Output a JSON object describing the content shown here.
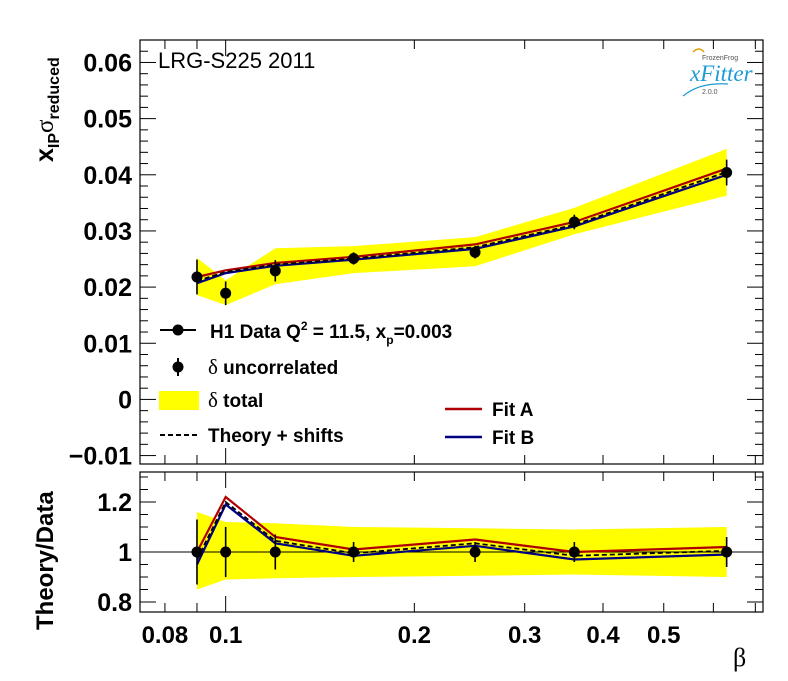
{
  "chart_data": [
    {
      "panel": "main",
      "type": "line",
      "title": "LRG-S225 2011",
      "xlabel": "β",
      "ylabel": {
        "main": "x",
        "sub1": "IP",
        "sym": "σ",
        "sub2": "reduced"
      },
      "xscale": "log",
      "xlim": [
        0.073,
        0.72
      ],
      "ylim": [
        -0.0115,
        0.064
      ],
      "yticks": [
        -0.01,
        0,
        0.01,
        0.02,
        0.03,
        0.04,
        0.05,
        0.06
      ],
      "ytick_labels": [
        "−0.01",
        "0",
        "0.01",
        "0.02",
        "0.03",
        "0.04",
        "0.05",
        "0.06"
      ],
      "x": [
        0.09,
        0.1,
        0.12,
        0.16,
        0.25,
        0.36,
        0.63
      ],
      "data": {
        "name": "H1 Data",
        "values": [
          0.0218,
          0.0189,
          0.0229,
          0.0251,
          0.0262,
          0.0316,
          0.0404
        ],
        "err_uncorrelated": [
          0.0031,
          0.0021,
          0.0019,
          0.0011,
          0.0011,
          0.0013,
          0.0023
        ]
      },
      "band_total": {
        "lower": [
          0.0186,
          0.0168,
          0.0205,
          0.0225,
          0.0237,
          0.0294,
          0.0363
        ],
        "upper": [
          0.0252,
          0.0212,
          0.0269,
          0.0273,
          0.0289,
          0.0341,
          0.0446
        ]
      },
      "series": [
        {
          "name": "Fit A",
          "color": "#b00000",
          "style": "solid",
          "values": [
            0.0218,
            0.023,
            0.0243,
            0.0254,
            0.0276,
            0.0316,
            0.0411
          ]
        },
        {
          "name": "Fit B",
          "color": "#000080",
          "style": "solid",
          "values": [
            0.0207,
            0.0225,
            0.0238,
            0.0249,
            0.0268,
            0.0308,
            0.04
          ]
        },
        {
          "name": "Theory + shifts",
          "color": "#000000",
          "style": "dashed",
          "values": [
            0.0211,
            0.0227,
            0.024,
            0.0251,
            0.0271,
            0.0311,
            0.0405
          ]
        }
      ]
    },
    {
      "panel": "ratio",
      "type": "line",
      "ylabel": "Theory/Data",
      "xscale": "log",
      "xlim": [
        0.073,
        0.72
      ],
      "ylim": [
        0.76,
        1.32
      ],
      "yticks": [
        0.8,
        1,
        1.2
      ],
      "ytick_labels": [
        "0.8",
        "1",
        "1.2"
      ],
      "xticks": [
        0.08,
        0.1,
        0.2,
        0.3,
        0.4,
        0.5
      ],
      "xtick_labels": [
        "0.08",
        "0.1",
        "0.2",
        "0.3",
        "0.4",
        "0.5"
      ],
      "x": [
        0.09,
        0.1,
        0.12,
        0.16,
        0.25,
        0.36,
        0.63
      ],
      "data": {
        "values": [
          1,
          1,
          1,
          1,
          1,
          1,
          1
        ],
        "err_uncorrelated": [
          0.13,
          0.1,
          0.07,
          0.04,
          0.04,
          0.04,
          0.06
        ]
      },
      "band_total": {
        "lower": [
          0.85,
          0.89,
          0.895,
          0.9,
          0.905,
          0.91,
          0.9
        ],
        "upper": [
          1.16,
          1.12,
          1.115,
          1.1,
          1.095,
          1.09,
          1.1
        ]
      },
      "series": [
        {
          "name": "Fit A",
          "color": "#b00000",
          "style": "solid",
          "values": [
            1.0,
            1.22,
            1.06,
            1.01,
            1.05,
            1.0,
            1.02
          ]
        },
        {
          "name": "Fit B",
          "color": "#000080",
          "style": "solid",
          "values": [
            0.95,
            1.19,
            1.035,
            0.985,
            1.025,
            0.97,
            0.99
          ]
        },
        {
          "name": "Theory + shifts",
          "color": "#000000",
          "style": "dashed",
          "values": [
            0.97,
            1.2,
            1.045,
            0.995,
            1.035,
            0.985,
            1.005
          ]
        }
      ]
    }
  ],
  "legend": {
    "data_label": {
      "pre": "H1 Data Q",
      "sup": "2",
      "mid": " = 11.5, x",
      "sub": "p",
      "post": "=0.003"
    },
    "uncorrelated_label": {
      "sym": "δ",
      "text": " uncorrelated"
    },
    "total_label": {
      "sym": "δ",
      "text": " total"
    },
    "theory_label": "Theory + shifts",
    "fit_a_label": "Fit A",
    "fit_b_label": "Fit B"
  },
  "logo": {
    "top": "FrozenFrog",
    "main": "xFitter",
    "version": "2.0.0"
  },
  "colors": {
    "band": "#ffff00",
    "fit_a": "#b00000",
    "fit_b": "#000080",
    "logo": "#1e9ad6"
  }
}
